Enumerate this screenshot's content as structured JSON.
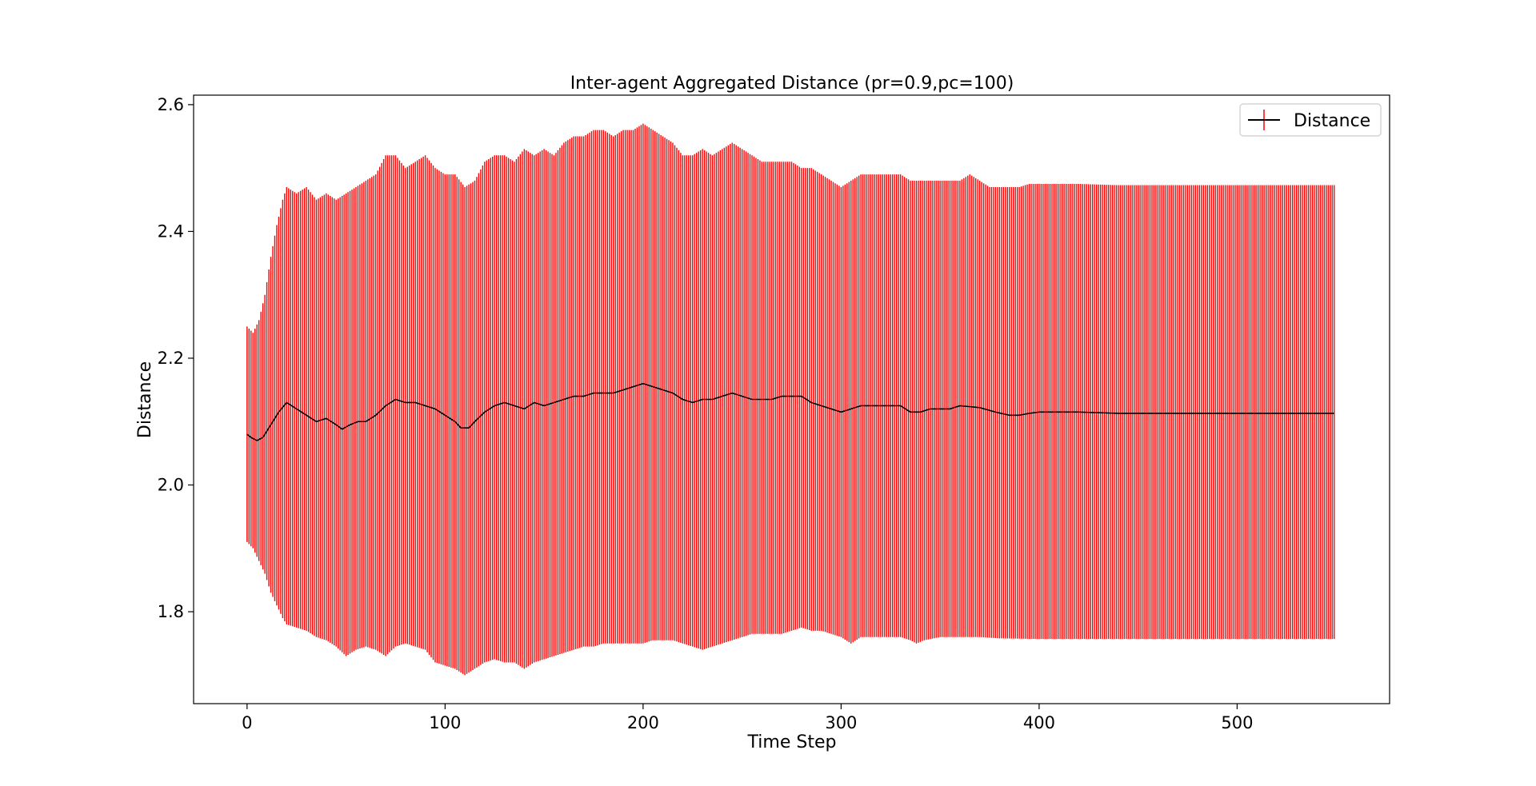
{
  "chart_data": {
    "type": "line",
    "title": "Inter-agent Aggregated Distance (pr=0.9,pc=100)",
    "xlabel": "Time Step",
    "ylabel": "Distance",
    "xlim": [
      -27,
      577
    ],
    "ylim": [
      1.655,
      2.615
    ],
    "x_ticks": [
      0,
      100,
      200,
      300,
      400,
      500
    ],
    "x_tick_labels": [
      "0",
      "100",
      "200",
      "300",
      "400",
      "500"
    ],
    "y_ticks": [
      1.8,
      2.0,
      2.2,
      2.4,
      2.6
    ],
    "y_tick_labels": [
      "1.8",
      "2.0",
      "2.2",
      "2.4",
      "2.6"
    ],
    "grid": false,
    "legend_position": "top-right",
    "x_range": [
      0,
      549
    ],
    "series": [
      {
        "name": "Distance",
        "color": "#000000",
        "error_color": "#ff0000",
        "mean_keypoints": [
          [
            0,
            2.08
          ],
          [
            2,
            2.075
          ],
          [
            5,
            2.07
          ],
          [
            8,
            2.075
          ],
          [
            12,
            2.095
          ],
          [
            16,
            2.115
          ],
          [
            20,
            2.13
          ],
          [
            25,
            2.12
          ],
          [
            30,
            2.11
          ],
          [
            35,
            2.1
          ],
          [
            40,
            2.105
          ],
          [
            45,
            2.095
          ],
          [
            48,
            2.088
          ],
          [
            52,
            2.095
          ],
          [
            56,
            2.1
          ],
          [
            60,
            2.1
          ],
          [
            65,
            2.11
          ],
          [
            70,
            2.125
          ],
          [
            75,
            2.135
          ],
          [
            80,
            2.13
          ],
          [
            85,
            2.13
          ],
          [
            90,
            2.125
          ],
          [
            95,
            2.12
          ],
          [
            100,
            2.11
          ],
          [
            105,
            2.1
          ],
          [
            108,
            2.09
          ],
          [
            112,
            2.09
          ],
          [
            115,
            2.1
          ],
          [
            120,
            2.115
          ],
          [
            125,
            2.125
          ],
          [
            130,
            2.13
          ],
          [
            135,
            2.125
          ],
          [
            140,
            2.12
          ],
          [
            145,
            2.13
          ],
          [
            150,
            2.125
          ],
          [
            155,
            2.13
          ],
          [
            160,
            2.135
          ],
          [
            165,
            2.14
          ],
          [
            170,
            2.14
          ],
          [
            175,
            2.145
          ],
          [
            180,
            2.145
          ],
          [
            185,
            2.145
          ],
          [
            190,
            2.15
          ],
          [
            195,
            2.155
          ],
          [
            200,
            2.16
          ],
          [
            205,
            2.155
          ],
          [
            210,
            2.15
          ],
          [
            215,
            2.145
          ],
          [
            220,
            2.135
          ],
          [
            225,
            2.13
          ],
          [
            230,
            2.135
          ],
          [
            235,
            2.135
          ],
          [
            240,
            2.14
          ],
          [
            245,
            2.145
          ],
          [
            250,
            2.14
          ],
          [
            255,
            2.135
          ],
          [
            260,
            2.135
          ],
          [
            265,
            2.135
          ],
          [
            270,
            2.14
          ],
          [
            275,
            2.14
          ],
          [
            280,
            2.14
          ],
          [
            285,
            2.13
          ],
          [
            290,
            2.125
          ],
          [
            295,
            2.12
          ],
          [
            300,
            2.115
          ],
          [
            305,
            2.12
          ],
          [
            310,
            2.125
          ],
          [
            320,
            2.125
          ],
          [
            330,
            2.125
          ],
          [
            335,
            2.115
          ],
          [
            340,
            2.115
          ],
          [
            345,
            2.12
          ],
          [
            350,
            2.12
          ],
          [
            355,
            2.12
          ],
          [
            360,
            2.125
          ],
          [
            370,
            2.122
          ],
          [
            378,
            2.115
          ],
          [
            385,
            2.11
          ],
          [
            390,
            2.11
          ],
          [
            395,
            2.113
          ],
          [
            400,
            2.115
          ],
          [
            420,
            2.115
          ],
          [
            440,
            2.113
          ],
          [
            460,
            2.113
          ],
          [
            480,
            2.113
          ],
          [
            500,
            2.113
          ],
          [
            520,
            2.113
          ],
          [
            549,
            2.113
          ]
        ],
        "upper_keypoints": [
          [
            0,
            2.25
          ],
          [
            3,
            2.24
          ],
          [
            6,
            2.26
          ],
          [
            9,
            2.3
          ],
          [
            12,
            2.36
          ],
          [
            15,
            2.41
          ],
          [
            18,
            2.45
          ],
          [
            20,
            2.47
          ],
          [
            25,
            2.46
          ],
          [
            30,
            2.47
          ],
          [
            35,
            2.45
          ],
          [
            40,
            2.46
          ],
          [
            45,
            2.45
          ],
          [
            50,
            2.46
          ],
          [
            55,
            2.47
          ],
          [
            60,
            2.48
          ],
          [
            65,
            2.49
          ],
          [
            70,
            2.52
          ],
          [
            75,
            2.52
          ],
          [
            80,
            2.5
          ],
          [
            85,
            2.51
          ],
          [
            90,
            2.52
          ],
          [
            95,
            2.5
          ],
          [
            100,
            2.49
          ],
          [
            105,
            2.49
          ],
          [
            110,
            2.47
          ],
          [
            115,
            2.48
          ],
          [
            120,
            2.51
          ],
          [
            125,
            2.52
          ],
          [
            130,
            2.52
          ],
          [
            135,
            2.51
          ],
          [
            140,
            2.53
          ],
          [
            145,
            2.52
          ],
          [
            150,
            2.53
          ],
          [
            155,
            2.52
          ],
          [
            160,
            2.54
          ],
          [
            165,
            2.55
          ],
          [
            170,
            2.55
          ],
          [
            175,
            2.56
          ],
          [
            180,
            2.56
          ],
          [
            185,
            2.55
          ],
          [
            190,
            2.56
          ],
          [
            195,
            2.56
          ],
          [
            200,
            2.57
          ],
          [
            205,
            2.56
          ],
          [
            210,
            2.55
          ],
          [
            215,
            2.54
          ],
          [
            220,
            2.52
          ],
          [
            225,
            2.52
          ],
          [
            230,
            2.53
          ],
          [
            235,
            2.52
          ],
          [
            240,
            2.53
          ],
          [
            245,
            2.54
          ],
          [
            250,
            2.53
          ],
          [
            255,
            2.52
          ],
          [
            260,
            2.51
          ],
          [
            265,
            2.51
          ],
          [
            270,
            2.51
          ],
          [
            275,
            2.51
          ],
          [
            280,
            2.5
          ],
          [
            285,
            2.5
          ],
          [
            290,
            2.49
          ],
          [
            295,
            2.48
          ],
          [
            300,
            2.47
          ],
          [
            305,
            2.48
          ],
          [
            310,
            2.49
          ],
          [
            320,
            2.49
          ],
          [
            330,
            2.49
          ],
          [
            335,
            2.48
          ],
          [
            340,
            2.48
          ],
          [
            345,
            2.48
          ],
          [
            350,
            2.48
          ],
          [
            355,
            2.48
          ],
          [
            360,
            2.48
          ],
          [
            365,
            2.49
          ],
          [
            370,
            2.48
          ],
          [
            375,
            2.47
          ],
          [
            385,
            2.47
          ],
          [
            390,
            2.47
          ],
          [
            395,
            2.475
          ],
          [
            400,
            2.475
          ],
          [
            420,
            2.475
          ],
          [
            440,
            2.473
          ],
          [
            460,
            2.473
          ],
          [
            480,
            2.473
          ],
          [
            500,
            2.473
          ],
          [
            520,
            2.473
          ],
          [
            549,
            2.473
          ]
        ],
        "lower_keypoints": [
          [
            0,
            1.91
          ],
          [
            3,
            1.9
          ],
          [
            6,
            1.88
          ],
          [
            9,
            1.86
          ],
          [
            12,
            1.83
          ],
          [
            15,
            1.81
          ],
          [
            18,
            1.79
          ],
          [
            20,
            1.78
          ],
          [
            25,
            1.775
          ],
          [
            30,
            1.77
          ],
          [
            35,
            1.76
          ],
          [
            40,
            1.755
          ],
          [
            45,
            1.745
          ],
          [
            50,
            1.73
          ],
          [
            55,
            1.74
          ],
          [
            60,
            1.745
          ],
          [
            65,
            1.74
          ],
          [
            70,
            1.73
          ],
          [
            75,
            1.745
          ],
          [
            80,
            1.75
          ],
          [
            85,
            1.745
          ],
          [
            90,
            1.74
          ],
          [
            95,
            1.72
          ],
          [
            100,
            1.715
          ],
          [
            105,
            1.71
          ],
          [
            110,
            1.7
          ],
          [
            115,
            1.71
          ],
          [
            120,
            1.72
          ],
          [
            125,
            1.725
          ],
          [
            130,
            1.72
          ],
          [
            135,
            1.72
          ],
          [
            140,
            1.71
          ],
          [
            145,
            1.72
          ],
          [
            150,
            1.725
          ],
          [
            155,
            1.73
          ],
          [
            160,
            1.735
          ],
          [
            165,
            1.74
          ],
          [
            170,
            1.745
          ],
          [
            175,
            1.745
          ],
          [
            180,
            1.75
          ],
          [
            185,
            1.75
          ],
          [
            190,
            1.75
          ],
          [
            195,
            1.75
          ],
          [
            200,
            1.75
          ],
          [
            205,
            1.755
          ],
          [
            210,
            1.755
          ],
          [
            215,
            1.755
          ],
          [
            220,
            1.75
          ],
          [
            225,
            1.745
          ],
          [
            230,
            1.74
          ],
          [
            235,
            1.745
          ],
          [
            240,
            1.75
          ],
          [
            245,
            1.755
          ],
          [
            250,
            1.76
          ],
          [
            255,
            1.765
          ],
          [
            260,
            1.765
          ],
          [
            270,
            1.765
          ],
          [
            275,
            1.77
          ],
          [
            280,
            1.775
          ],
          [
            285,
            1.77
          ],
          [
            290,
            1.77
          ],
          [
            295,
            1.765
          ],
          [
            300,
            1.76
          ],
          [
            305,
            1.75
          ],
          [
            310,
            1.76
          ],
          [
            320,
            1.76
          ],
          [
            330,
            1.76
          ],
          [
            335,
            1.755
          ],
          [
            338,
            1.75
          ],
          [
            342,
            1.755
          ],
          [
            350,
            1.76
          ],
          [
            360,
            1.76
          ],
          [
            370,
            1.76
          ],
          [
            380,
            1.758
          ],
          [
            400,
            1.757
          ],
          [
            420,
            1.757
          ],
          [
            440,
            1.757
          ],
          [
            460,
            1.757
          ],
          [
            480,
            1.757
          ],
          [
            500,
            1.757
          ],
          [
            520,
            1.757
          ],
          [
            549,
            1.757
          ]
        ]
      }
    ]
  }
}
